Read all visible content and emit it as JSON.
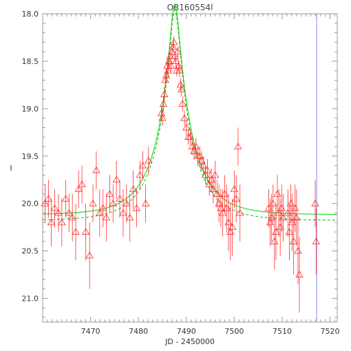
{
  "chart_data": {
    "type": "scatter",
    "title": "OB160554l",
    "xlabel": "JD - 2450000",
    "ylabel": "I",
    "xlim": [
      7460.0,
      7521.5
    ],
    "ylim": [
      21.25,
      18.0
    ],
    "y_inverted": true,
    "xticks": [
      7470,
      7480,
      7490,
      7500,
      7510,
      7520
    ],
    "yticks": [
      18.0,
      18.5,
      19.0,
      19.5,
      20.0,
      20.5,
      21.0
    ],
    "ytick_labels": [
      "18.0",
      "18.5",
      "19.0",
      "19.5",
      "20.0",
      "20.5",
      "21.0"
    ],
    "grid": false,
    "marker": "open-triangle",
    "colors": {
      "points": "#ff2a2a",
      "model_solid": "#22dd22",
      "model_dashed": "#22aa22",
      "vertical_line": "#8888ff",
      "frame": "#999999"
    },
    "vertical_line_x": 7517.2,
    "model": {
      "t0": 7487.6,
      "tE": 7.5,
      "u0": 0.13,
      "baseline": 20.12,
      "baseline_dashed": 20.18
    },
    "series": [
      {
        "x": [
          7460.5,
          7461.2,
          7461.8,
          7462.5,
          7463.3,
          7464.0,
          7464.8,
          7465.5,
          7466.2,
          7466.9,
          7467.5,
          7468.2,
          7469.0,
          7469.8,
          7470.5,
          7471.2,
          7471.9,
          7472.6,
          7473.3,
          7474.0,
          7474.7,
          7475.4,
          7476.1,
          7476.8,
          7477.5,
          7478.2,
          7478.9,
          7479.6,
          7480.3,
          7480.9,
          7481.5,
          7482.1,
          7484.8,
          7485.0,
          7485.2,
          7485.4,
          7485.6,
          7485.8,
          7486.0,
          7486.2,
          7486.4,
          7486.6,
          7486.8,
          7487.0,
          7487.2,
          7487.4,
          7487.6,
          7487.8,
          7488.0,
          7488.2,
          7488.4,
          7488.6,
          7488.8,
          7489.0,
          7489.2,
          7489.6,
          7490.0,
          7490.4,
          7490.8,
          7491.2,
          7491.6,
          7492.0,
          7492.4,
          7492.8,
          7493.2,
          7493.6,
          7494.0,
          7494.4,
          7494.8,
          7495.2,
          7495.6,
          7496.0,
          7496.4,
          7496.8,
          7497.2,
          7497.6,
          7498.0,
          7498.4,
          7498.8,
          7499.2,
          7499.6,
          7500.0,
          7500.4,
          7500.8,
          7501.2,
          7507.2,
          7507.5,
          7507.8,
          7508.1,
          7508.4,
          7508.7,
          7509.0,
          7509.3,
          7509.6,
          7509.9,
          7510.2,
          7511.2,
          7511.5,
          7511.8,
          7512.1,
          7512.4,
          7512.7,
          7513.0,
          7513.3,
          7513.6,
          7516.9,
          7517.1
        ],
        "y": [
          20.0,
          19.95,
          20.2,
          20.05,
          20.1,
          20.2,
          19.95,
          20.1,
          20.15,
          20.3,
          19.85,
          19.8,
          20.3,
          20.55,
          20.0,
          19.65,
          20.1,
          20.05,
          20.15,
          19.9,
          20.0,
          19.75,
          19.95,
          20.1,
          20.0,
          20.15,
          19.85,
          20.05,
          19.7,
          19.6,
          20.0,
          19.55,
          19.05,
          19.1,
          18.95,
          18.85,
          18.7,
          18.65,
          18.55,
          18.6,
          18.5,
          18.45,
          18.55,
          18.4,
          18.35,
          18.3,
          18.45,
          18.5,
          18.6,
          18.4,
          18.55,
          18.6,
          18.75,
          18.8,
          18.95,
          19.1,
          19.2,
          19.3,
          19.3,
          19.4,
          19.45,
          19.4,
          19.5,
          19.5,
          19.55,
          19.6,
          19.7,
          19.65,
          19.8,
          19.75,
          19.85,
          19.7,
          19.9,
          20.0,
          20.05,
          20.1,
          19.9,
          20.05,
          20.2,
          20.3,
          20.25,
          19.85,
          19.95,
          19.4,
          20.1,
          20.05,
          20.2,
          20.15,
          20.0,
          20.4,
          20.3,
          19.9,
          20.1,
          20.25,
          20.05,
          20.15,
          20.1,
          20.3,
          20.0,
          20.2,
          20.4,
          20.05,
          20.15,
          20.5,
          20.75,
          20.0,
          20.4
        ],
        "yerr": [
          0.2,
          0.2,
          0.25,
          0.2,
          0.2,
          0.25,
          0.2,
          0.2,
          0.25,
          0.3,
          0.2,
          0.2,
          0.3,
          0.35,
          0.2,
          0.2,
          0.25,
          0.2,
          0.25,
          0.2,
          0.2,
          0.2,
          0.2,
          0.25,
          0.2,
          0.25,
          0.2,
          0.2,
          0.15,
          0.15,
          0.2,
          0.15,
          0.08,
          0.08,
          0.08,
          0.08,
          0.07,
          0.07,
          0.07,
          0.07,
          0.06,
          0.06,
          0.06,
          0.06,
          0.06,
          0.06,
          0.06,
          0.06,
          0.06,
          0.06,
          0.06,
          0.07,
          0.07,
          0.07,
          0.08,
          0.08,
          0.08,
          0.08,
          0.08,
          0.09,
          0.09,
          0.09,
          0.1,
          0.1,
          0.1,
          0.1,
          0.1,
          0.12,
          0.12,
          0.12,
          0.15,
          0.15,
          0.15,
          0.2,
          0.2,
          0.25,
          0.2,
          0.25,
          0.3,
          0.3,
          0.3,
          0.2,
          0.25,
          0.2,
          0.3,
          0.2,
          0.25,
          0.25,
          0.2,
          0.3,
          0.3,
          0.2,
          0.25,
          0.3,
          0.25,
          0.25,
          0.25,
          0.3,
          0.2,
          0.3,
          0.35,
          0.25,
          0.3,
          0.35,
          0.4,
          0.25,
          0.35
        ]
      }
    ]
  }
}
